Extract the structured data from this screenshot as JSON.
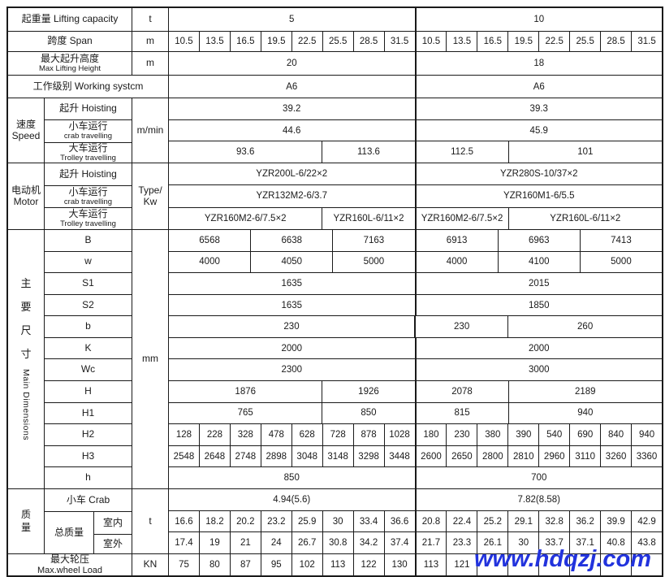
{
  "watermark": "www.hdqzj.com",
  "colors": {
    "border": "#1a1a1a",
    "text": "#1a1a1a",
    "watermark": "#2233dd",
    "background": "#ffffff"
  },
  "rows": {
    "capacity": {
      "label": "起重量 Lifting  capacity",
      "unit": "t",
      "cells": [
        [
          "5",
          8
        ],
        [
          "10",
          8,
          1
        ]
      ]
    },
    "span": {
      "label": "跨度 Span",
      "unit": "m",
      "cells": [
        [
          "10.5",
          1
        ],
        [
          "13.5",
          1
        ],
        [
          "16.5",
          1
        ],
        [
          "19.5",
          1
        ],
        [
          "22.5",
          1
        ],
        [
          "25.5",
          1
        ],
        [
          "28.5",
          1
        ],
        [
          "31.5",
          1
        ],
        [
          "10.5",
          1,
          1
        ],
        [
          "13.5",
          1
        ],
        [
          "16.5",
          1
        ],
        [
          "19.5",
          1
        ],
        [
          "22.5",
          1
        ],
        [
          "25.5",
          1
        ],
        [
          "28.5",
          1
        ],
        [
          "31.5",
          1
        ]
      ]
    },
    "max_height": {
      "label_cn": "最大起升高度",
      "label_en": "Max Lifting  Height",
      "unit": "m",
      "cells": [
        [
          "20",
          8
        ],
        [
          "18",
          8,
          1
        ]
      ]
    },
    "working": {
      "label": "工作级别  Working systcm",
      "cells": [
        [
          "A6",
          8
        ],
        [
          "A6",
          8,
          1
        ]
      ]
    }
  },
  "speed": {
    "group_cn": "速度",
    "group_en": "Speed",
    "unit": "m/min",
    "rows": [
      {
        "label_cn": "起升 Hoisting",
        "label_en": "",
        "cells": [
          [
            "39.2",
            8
          ],
          [
            "39.3",
            8,
            1
          ]
        ]
      },
      {
        "label_cn": "小车运行",
        "label_en": "crab  travelling",
        "cells": [
          [
            "44.6",
            8
          ],
          [
            "45.9",
            8,
            1
          ]
        ]
      },
      {
        "label_cn": "大车运行",
        "label_en": "Trolley  travelling",
        "cells": [
          [
            "93.6",
            5
          ],
          [
            "113.6",
            3
          ],
          [
            "112.5",
            3,
            1
          ],
          [
            "101",
            5
          ]
        ]
      }
    ]
  },
  "motor": {
    "group_cn": "电动机",
    "group_en": "Motor",
    "unit": "Type/ Kw",
    "rows": [
      {
        "label_cn": "起升 Hoisting",
        "label_en": "",
        "cells": [
          [
            "YZR200L-6/22×2",
            8
          ],
          [
            "YZR280S-10/37×2",
            8,
            1
          ]
        ]
      },
      {
        "label_cn": "小车运行",
        "label_en": "crab  travelling",
        "cells": [
          [
            "YZR132M2-6/3.7",
            8
          ],
          [
            "YZR160M1-6/5.5",
            8,
            1
          ]
        ]
      },
      {
        "label_cn": "大车运行",
        "label_en": "Trolley  travelling",
        "cells": [
          [
            "YZR160M2-6/7.5×2",
            5
          ],
          [
            "YZR160L-6/11×2",
            3
          ],
          [
            "YZR160M2-6/7.5×2",
            3,
            1
          ],
          [
            "YZR160L-6/11×2",
            5
          ]
        ]
      }
    ]
  },
  "dimensions": {
    "group_chars": [
      "主",
      "要",
      "尺",
      "寸"
    ],
    "group_en": "Main Dimensions",
    "unit": "mm",
    "rows": [
      {
        "label": "B",
        "cells": [
          [
            "6568",
            1
          ],
          [
            "6638",
            1
          ],
          [
            "7163",
            1
          ],
          [
            "6913",
            1,
            1
          ],
          [
            "6963",
            1
          ],
          [
            "7413",
            1
          ]
        ]
      },
      {
        "label": "w",
        "cells": [
          [
            "4000",
            1
          ],
          [
            "4050",
            1
          ],
          [
            "5000",
            1
          ],
          [
            "4000",
            1,
            1
          ],
          [
            "4100",
            1
          ],
          [
            "5000",
            1
          ]
        ]
      },
      {
        "label": "S1",
        "cells": [
          [
            "1635",
            8
          ],
          [
            "2015",
            8,
            1
          ]
        ]
      },
      {
        "label": "S2",
        "cells": [
          [
            "1635",
            8
          ],
          [
            "1850",
            8,
            1
          ]
        ]
      },
      {
        "label": "b",
        "cells": [
          [
            "230",
            8
          ],
          [
            "230",
            3,
            1
          ],
          [
            "260",
            5
          ]
        ]
      },
      {
        "label": "K",
        "cells": [
          [
            "2000",
            8
          ],
          [
            "2000",
            8,
            1
          ]
        ]
      },
      {
        "label": "Wc",
        "cells": [
          [
            "2300",
            8
          ],
          [
            "3000",
            8,
            1
          ]
        ]
      },
      {
        "label": "H",
        "cells": [
          [
            "1876",
            5
          ],
          [
            "1926",
            3
          ],
          [
            "2078",
            3,
            1
          ],
          [
            "2189",
            5
          ]
        ]
      },
      {
        "label": "H1",
        "cells": [
          [
            "765",
            5
          ],
          [
            "850",
            3
          ],
          [
            "815",
            3,
            1
          ],
          [
            "940",
            5
          ]
        ]
      },
      {
        "label": "H2",
        "cells": [
          [
            "128",
            1
          ],
          [
            "228",
            1
          ],
          [
            "328",
            1
          ],
          [
            "478",
            1
          ],
          [
            "628",
            1
          ],
          [
            "728",
            1
          ],
          [
            "878",
            1
          ],
          [
            "1028",
            1
          ],
          [
            "180",
            1,
            1
          ],
          [
            "230",
            1
          ],
          [
            "380",
            1
          ],
          [
            "390",
            1
          ],
          [
            "540",
            1
          ],
          [
            "690",
            1
          ],
          [
            "840",
            1
          ],
          [
            "940",
            1
          ]
        ]
      },
      {
        "label": "H3",
        "cells": [
          [
            "2548",
            1
          ],
          [
            "2648",
            1
          ],
          [
            "2748",
            1
          ],
          [
            "2898",
            1
          ],
          [
            "3048",
            1
          ],
          [
            "3148",
            1
          ],
          [
            "3298",
            1
          ],
          [
            "3448",
            1
          ],
          [
            "2600",
            1,
            1
          ],
          [
            "2650",
            1
          ],
          [
            "2800",
            1
          ],
          [
            "2810",
            1
          ],
          [
            "2960",
            1
          ],
          [
            "3110",
            1
          ],
          [
            "3260",
            1
          ],
          [
            "3360",
            1
          ]
        ]
      },
      {
        "label": "h",
        "cells": [
          [
            "850",
            8
          ],
          [
            "700",
            8,
            1
          ]
        ]
      }
    ]
  },
  "mass": {
    "group_chars": [
      "质",
      "量"
    ],
    "unit": "t",
    "crab": {
      "label": "小车 Crab",
      "cells": [
        [
          "4.94(5.6)",
          8
        ],
        [
          "7.82(8.58)",
          8,
          1
        ]
      ]
    },
    "total_label": "总质量",
    "indoor": {
      "label": "室内",
      "cells": [
        [
          "16.6",
          1
        ],
        [
          "18.2",
          1
        ],
        [
          "20.2",
          1
        ],
        [
          "23.2",
          1
        ],
        [
          "25.9",
          1
        ],
        [
          "30",
          1
        ],
        [
          "33.4",
          1
        ],
        [
          "36.6",
          1
        ],
        [
          "20.8",
          1,
          1
        ],
        [
          "22.4",
          1
        ],
        [
          "25.2",
          1
        ],
        [
          "29.1",
          1
        ],
        [
          "32.8",
          1
        ],
        [
          "36.2",
          1
        ],
        [
          "39.9",
          1
        ],
        [
          "42.9",
          1
        ]
      ]
    },
    "outdoor": {
      "label": "室外",
      "cells": [
        [
          "17.4",
          1
        ],
        [
          "19",
          1
        ],
        [
          "21",
          1
        ],
        [
          "24",
          1
        ],
        [
          "26.7",
          1
        ],
        [
          "30.8",
          1
        ],
        [
          "34.2",
          1
        ],
        [
          "37.4",
          1
        ],
        [
          "21.7",
          1,
          1
        ],
        [
          "23.3",
          1
        ],
        [
          "26.1",
          1
        ],
        [
          "30",
          1
        ],
        [
          "33.7",
          1
        ],
        [
          "37.1",
          1
        ],
        [
          "40.8",
          1
        ],
        [
          "43.8",
          1
        ]
      ]
    }
  },
  "wheel": {
    "label_cn": "最大轮压",
    "label_en": "Max.wheel Load",
    "unit": "KN",
    "cells": [
      [
        "75",
        1
      ],
      [
        "80",
        1
      ],
      [
        "87",
        1
      ],
      [
        "95",
        1
      ],
      [
        "102",
        1
      ],
      [
        "113",
        1
      ],
      [
        "122",
        1
      ],
      [
        "130",
        1
      ],
      [
        "113",
        1,
        1
      ],
      [
        "121",
        1
      ],
      [
        "",
        1
      ],
      [
        "",
        1
      ],
      [
        "",
        1
      ],
      [
        "",
        1
      ],
      [
        "",
        1
      ],
      [
        "",
        1
      ]
    ]
  }
}
